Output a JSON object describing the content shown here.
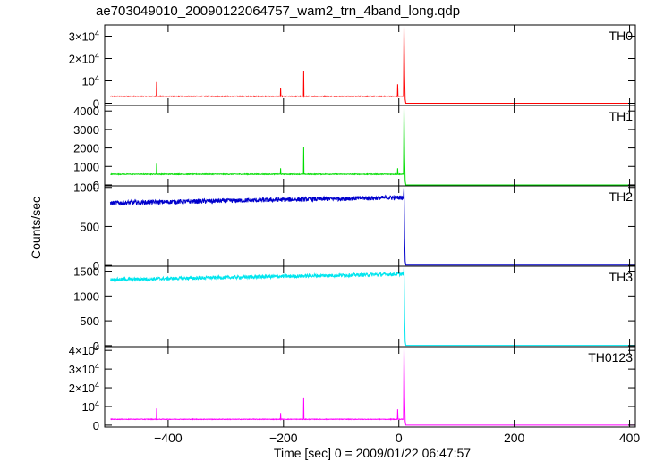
{
  "figure": {
    "title": "ae703049010_20090122064757_wam2_trn_4band_long.qdp",
    "ylabel": "Counts/sec",
    "xlabel": "Time [sec] 0 = 2009/01/22 06:47:57"
  },
  "chart_data": {
    "type": "line",
    "xlim": [
      -510,
      410
    ],
    "xticks": [
      -400,
      -200,
      0,
      200,
      400
    ],
    "xtick_labels": [
      "−400",
      "−200",
      "0",
      "200",
      "400"
    ],
    "grid": false,
    "panels": [
      {
        "name": "TH0",
        "color": "#ff0000",
        "ylim": [
          -1000,
          35000
        ],
        "yticks": [
          0,
          10000,
          20000,
          30000
        ],
        "ytick_labels": [
          {
            "base": "0"
          },
          {
            "base": "10",
            "sup": "4"
          },
          {
            "base": "2×10",
            "sup": "4"
          },
          {
            "base": "3×10",
            "sup": "4"
          }
        ],
        "baseline": 3100,
        "noise": 150,
        "pre": {
          "start": -500,
          "end": 8
        },
        "spikes": [
          [
            -420,
            9500
          ],
          [
            -205,
            7000
          ],
          [
            -165,
            14500
          ],
          [
            -2,
            8500
          ]
        ],
        "burst": {
          "time": 9,
          "peak": 34500
        },
        "post": {
          "start": 12,
          "end": 410,
          "level": 0
        }
      },
      {
        "name": "TH1",
        "color": "#00dd00",
        "ylim": [
          -50,
          4300
        ],
        "yticks": [
          0,
          1000,
          2000,
          3000,
          4000
        ],
        "ytick_labels": [
          {
            "base": "0"
          },
          {
            "base": "1000"
          },
          {
            "base": "2000"
          },
          {
            "base": "3000"
          },
          {
            "base": "4000"
          }
        ],
        "baseline": 580,
        "noise": 20,
        "pre": {
          "start": -500,
          "end": 8
        },
        "spikes": [
          [
            -420,
            1150
          ],
          [
            -205,
            900
          ],
          [
            -165,
            2050
          ],
          [
            -2,
            900
          ]
        ],
        "burst": {
          "time": 9,
          "peak": 4200
        },
        "post": {
          "start": 12,
          "end": 410,
          "level": 0
        }
      },
      {
        "name": "TH2",
        "color": "#0000cc",
        "ylim": [
          -10,
          1020
        ],
        "yticks": [
          0,
          500,
          1000
        ],
        "ytick_labels": [
          {
            "base": "0"
          },
          {
            "base": "500"
          },
          {
            "base": "1000"
          }
        ],
        "baseline": 830,
        "noise": 28,
        "trend": [
          -500,
          800,
          0,
          870
        ],
        "pre": {
          "start": -500,
          "end": 8
        },
        "spikes": [],
        "burst": {
          "time": 9,
          "peak": 1000
        },
        "post": {
          "start": 12,
          "end": 410,
          "level": 5
        }
      },
      {
        "name": "TH3",
        "color": "#00e5ee",
        "ylim": [
          -20,
          1600
        ],
        "yticks": [
          0,
          500,
          1000,
          1500
        ],
        "ytick_labels": [
          {
            "base": "0"
          },
          {
            "base": "500"
          },
          {
            "base": "1000"
          },
          {
            "base": "1500"
          }
        ],
        "baseline": 1400,
        "noise": 35,
        "trend": [
          -500,
          1330,
          0,
          1440
        ],
        "pre": {
          "start": -500,
          "end": 8
        },
        "spikes": [],
        "burst": {
          "time": 9,
          "peak": 1580
        },
        "post": {
          "start": 12,
          "end": 410,
          "level": 5
        }
      },
      {
        "name": "TH0123",
        "color": "#ff00ff",
        "ylim": [
          -1000,
          42000
        ],
        "yticks": [
          0,
          10000,
          20000,
          30000,
          40000
        ],
        "ytick_labels": [
          {
            "base": "0"
          },
          {
            "base": "10",
            "sup": "4"
          },
          {
            "base": "2×10",
            "sup": "4"
          },
          {
            "base": "3×10",
            "sup": "4"
          },
          {
            "base": "4×10",
            "sup": "4"
          }
        ],
        "baseline": 3200,
        "noise": 150,
        "pre": {
          "start": -500,
          "end": 8
        },
        "spikes": [
          [
            -420,
            9000
          ],
          [
            -205,
            6500
          ],
          [
            -165,
            14800
          ],
          [
            -2,
            8500
          ]
        ],
        "burst": {
          "time": 9,
          "peak": 41500
        },
        "post": {
          "start": 12,
          "end": 410,
          "level": 0
        }
      }
    ]
  }
}
